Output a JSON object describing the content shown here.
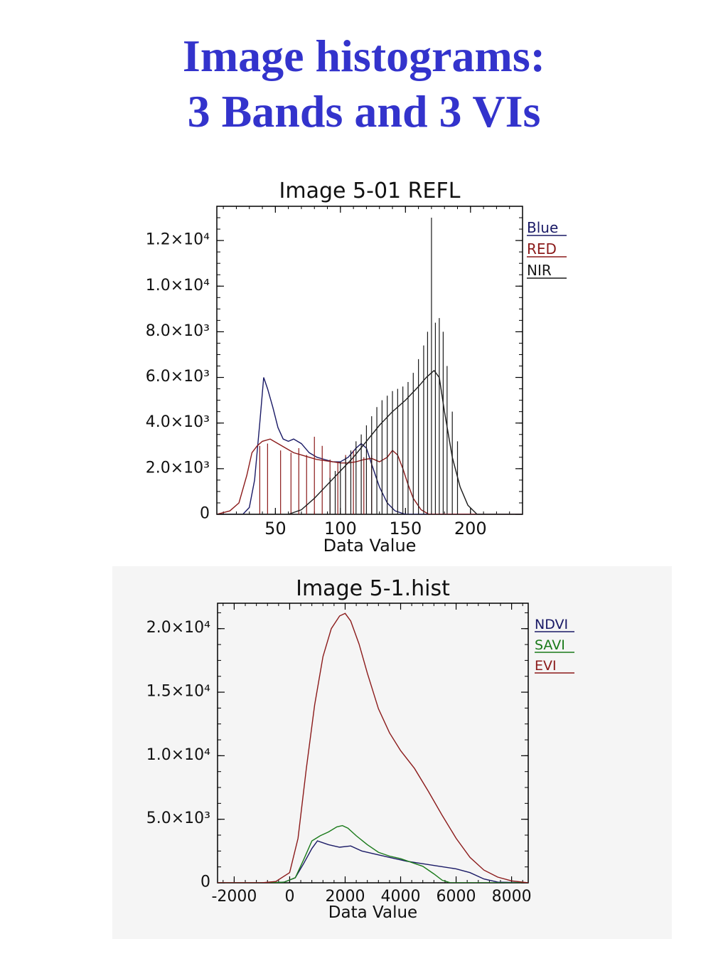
{
  "slide": {
    "title_line1": "Image histograms:",
    "title_line2": "3 Bands and 3 VIs"
  },
  "chart_data": [
    {
      "type": "line",
      "title": "Image 5-01 REFL",
      "xlabel": "Data Value",
      "ylabel": "",
      "xlim": [
        5,
        240
      ],
      "ylim": [
        0,
        13500
      ],
      "xticks": [
        50,
        100,
        150,
        200
      ],
      "xtick_labels": [
        "50",
        "100",
        "150",
        "200"
      ],
      "yticks": [
        0,
        2000,
        4000,
        6000,
        8000,
        10000,
        12000
      ],
      "ytick_labels": [
        "0",
        "2.0×10³",
        "4.0×10³",
        "6.0×10³",
        "8.0×10³",
        "1.0×10⁴",
        "1.2×10⁴"
      ],
      "legend_position": "right",
      "background": "#ffffff",
      "series": [
        {
          "name": "Blue",
          "color": "#1a1a66",
          "x": [
            5,
            25,
            30,
            34,
            38,
            41,
            44,
            48,
            52,
            56,
            60,
            64,
            70,
            76,
            82,
            88,
            94,
            100,
            106,
            112,
            116,
            120,
            124,
            130,
            136,
            142,
            150,
            160,
            240
          ],
          "y": [
            0,
            0,
            300,
            1500,
            4000,
            6000,
            5500,
            4700,
            3800,
            3300,
            3200,
            3300,
            3100,
            2700,
            2500,
            2400,
            2300,
            2300,
            2500,
            2900,
            3100,
            2900,
            2200,
            1200,
            500,
            150,
            0,
            0,
            0
          ]
        },
        {
          "name": "RED",
          "color": "#8b1a1a",
          "x": [
            5,
            15,
            22,
            28,
            32,
            36,
            40,
            46,
            52,
            58,
            64,
            70,
            76,
            82,
            88,
            94,
            100,
            106,
            112,
            118,
            124,
            130,
            136,
            140,
            144,
            148,
            152,
            156,
            162,
            168,
            240
          ],
          "y": [
            0,
            150,
            500,
            1700,
            2700,
            3000,
            3200,
            3300,
            3100,
            2900,
            2700,
            2600,
            2500,
            2400,
            2350,
            2300,
            2250,
            2250,
            2300,
            2400,
            2450,
            2300,
            2500,
            2800,
            2600,
            2000,
            1300,
            700,
            200,
            0,
            0
          ],
          "spikes": [
            [
              38,
              3000
            ],
            [
              44,
              3100
            ],
            [
              54,
              2800
            ],
            [
              62,
              2700
            ],
            [
              68,
              2900
            ],
            [
              74,
              2600
            ],
            [
              80,
              3400
            ],
            [
              86,
              3000
            ],
            [
              92,
              2400
            ],
            [
              98,
              2300
            ],
            [
              104,
              2600
            ],
            [
              110,
              2800
            ],
            [
              118,
              2500
            ],
            [
              124,
              2600
            ]
          ]
        },
        {
          "name": "NIR",
          "color": "#1a1a1a",
          "x": [
            5,
            60,
            70,
            80,
            90,
            100,
            110,
            120,
            130,
            140,
            150,
            160,
            166,
            172,
            176,
            180,
            186,
            192,
            198,
            205,
            240
          ],
          "y": [
            0,
            0,
            200,
            700,
            1300,
            1900,
            2500,
            3200,
            3900,
            4500,
            5000,
            5600,
            6000,
            6300,
            6000,
            4500,
            2500,
            1200,
            400,
            0,
            0
          ],
          "spikes": [
            [
              92,
              1600
            ],
            [
              96,
              1900
            ],
            [
              100,
              2300
            ],
            [
              104,
              2500
            ],
            [
              108,
              2800
            ],
            [
              112,
              3200
            ],
            [
              116,
              3500
            ],
            [
              120,
              3900
            ],
            [
              124,
              4300
            ],
            [
              128,
              4700
            ],
            [
              132,
              5000
            ],
            [
              136,
              5200
            ],
            [
              140,
              5400
            ],
            [
              144,
              5500
            ],
            [
              148,
              5600
            ],
            [
              152,
              5800
            ],
            [
              156,
              6200
            ],
            [
              160,
              6800
            ],
            [
              164,
              7400
            ],
            [
              167,
              8000
            ],
            [
              170,
              13000
            ],
            [
              173,
              8400
            ],
            [
              176,
              8600
            ],
            [
              179,
              8000
            ],
            [
              182,
              6500
            ],
            [
              186,
              4500
            ],
            [
              190,
              3200
            ]
          ]
        }
      ]
    },
    {
      "type": "line",
      "title": "Image 5-1.hist",
      "xlabel": "Data Value",
      "ylabel": "",
      "xlim": [
        -2600,
        8600
      ],
      "ylim": [
        0,
        22000
      ],
      "xticks": [
        -2000,
        0,
        2000,
        4000,
        6000,
        8000
      ],
      "xtick_labels": [
        "-2000",
        "0",
        "2000",
        "4000",
        "6000",
        "8000"
      ],
      "yticks": [
        0,
        5000,
        10000,
        15000,
        20000
      ],
      "ytick_labels": [
        "0",
        "5.0×10³",
        "1.0×10⁴",
        "1.5×10⁴",
        "2.0×10⁴"
      ],
      "legend_position": "right",
      "background": "#f5f5f5",
      "series": [
        {
          "name": "NDVI",
          "color": "#1a1a66",
          "x": [
            -2600,
            -800,
            -200,
            200,
            500,
            800,
            1000,
            1400,
            1800,
            2200,
            2600,
            3000,
            3600,
            4200,
            4800,
            5400,
            6000,
            6500,
            7000,
            7500,
            8600
          ],
          "y": [
            0,
            0,
            50,
            400,
            1500,
            2700,
            3300,
            3000,
            2800,
            2900,
            2500,
            2300,
            2000,
            1700,
            1500,
            1300,
            1100,
            800,
            300,
            50,
            0
          ]
        },
        {
          "name": "SAVI",
          "color": "#1a7a1a",
          "x": [
            -2600,
            -800,
            -200,
            200,
            500,
            800,
            1100,
            1400,
            1700,
            1900,
            2100,
            2400,
            2800,
            3200,
            3600,
            4000,
            4400,
            4800,
            5200,
            5500,
            5800,
            8600
          ],
          "y": [
            0,
            0,
            50,
            400,
            1800,
            3300,
            3700,
            4000,
            4400,
            4500,
            4300,
            3700,
            3000,
            2400,
            2100,
            1900,
            1600,
            1300,
            700,
            200,
            0,
            0
          ]
        },
        {
          "name": "EVI",
          "color": "#8b1a1a",
          "x": [
            -2600,
            -1000,
            -500,
            0,
            300,
            600,
            900,
            1200,
            1500,
            1800,
            2000,
            2200,
            2500,
            2800,
            3200,
            3600,
            4000,
            4500,
            5000,
            5500,
            6000,
            6500,
            7000,
            7500,
            8000,
            8600
          ],
          "y": [
            0,
            0,
            100,
            800,
            3500,
            9000,
            14000,
            17800,
            20000,
            21000,
            21200,
            20600,
            18800,
            16500,
            13700,
            11800,
            10400,
            9000,
            7200,
            5300,
            3500,
            2000,
            1000,
            450,
            150,
            0
          ]
        }
      ]
    }
  ]
}
